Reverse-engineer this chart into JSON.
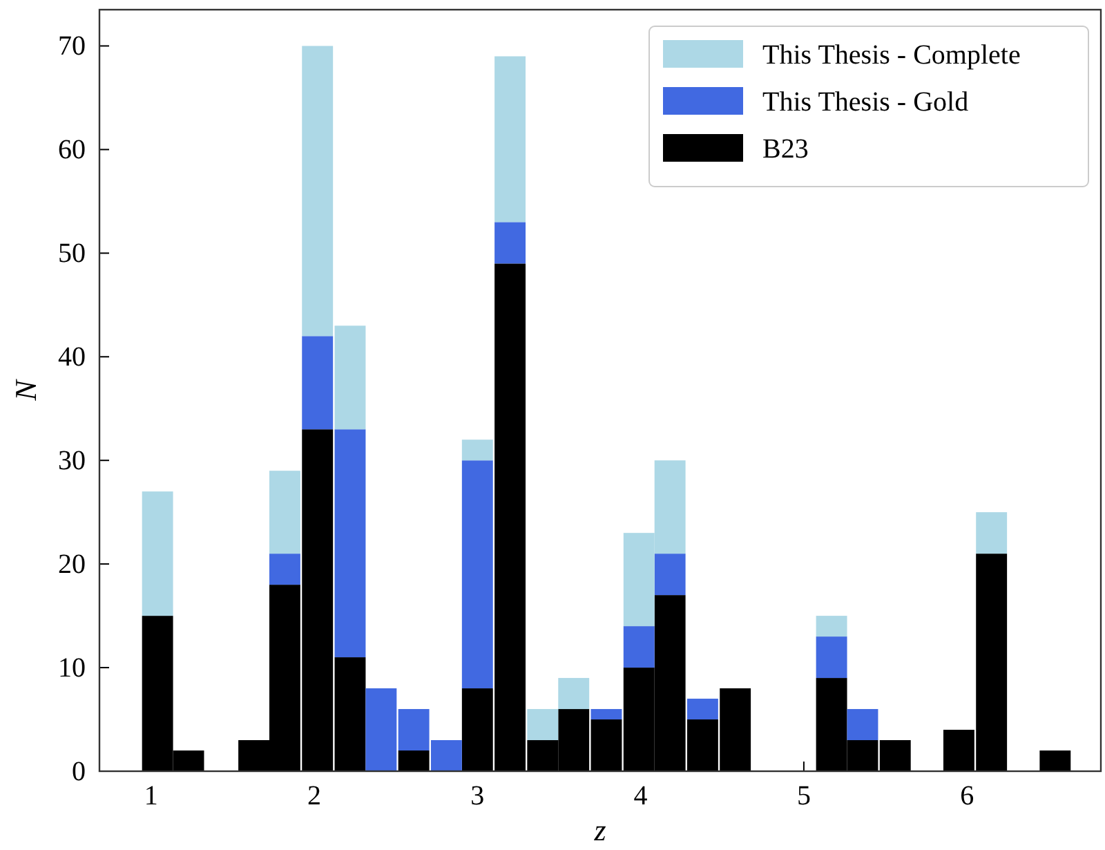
{
  "chart_data": {
    "type": "bar",
    "xlabel": "z",
    "ylabel": "N",
    "stacked": true,
    "x": [
      1.04,
      1.23,
      1.63,
      1.82,
      2.02,
      2.22,
      2.41,
      2.61,
      2.81,
      3.0,
      3.2,
      3.4,
      3.59,
      3.79,
      3.99,
      4.18,
      4.38,
      4.58,
      5.17,
      5.36,
      5.56,
      5.95,
      6.15,
      6.54
    ],
    "series": [
      {
        "name": "B23",
        "color": "#000000",
        "values": [
          15,
          2,
          3,
          18,
          33,
          11,
          0,
          2,
          0,
          8,
          49,
          3,
          6,
          5,
          10,
          17,
          5,
          8,
          9,
          3,
          3,
          4,
          21,
          2
        ]
      },
      {
        "name": "This Thesis - Gold",
        "color": "#4169e1",
        "values": [
          0,
          0,
          0,
          3,
          9,
          22,
          8,
          4,
          3,
          22,
          4,
          0,
          0,
          1,
          4,
          4,
          2,
          0,
          4,
          3,
          0,
          0,
          0,
          0
        ]
      },
      {
        "name": "This Thesis - Complete",
        "color": "#add8e6",
        "values": [
          12,
          0,
          0,
          8,
          28,
          10,
          0,
          0,
          0,
          2,
          16,
          3,
          3,
          0,
          9,
          9,
          0,
          0,
          2,
          0,
          0,
          0,
          4,
          0
        ]
      }
    ],
    "xlim": [
      0.684,
      6.82
    ],
    "ylim": [
      0,
      73.5
    ],
    "xticks": [
      1,
      2,
      3,
      4,
      5,
      6
    ],
    "yticks": [
      0,
      10,
      20,
      30,
      40,
      50,
      60,
      70
    ],
    "legend": "top right"
  }
}
